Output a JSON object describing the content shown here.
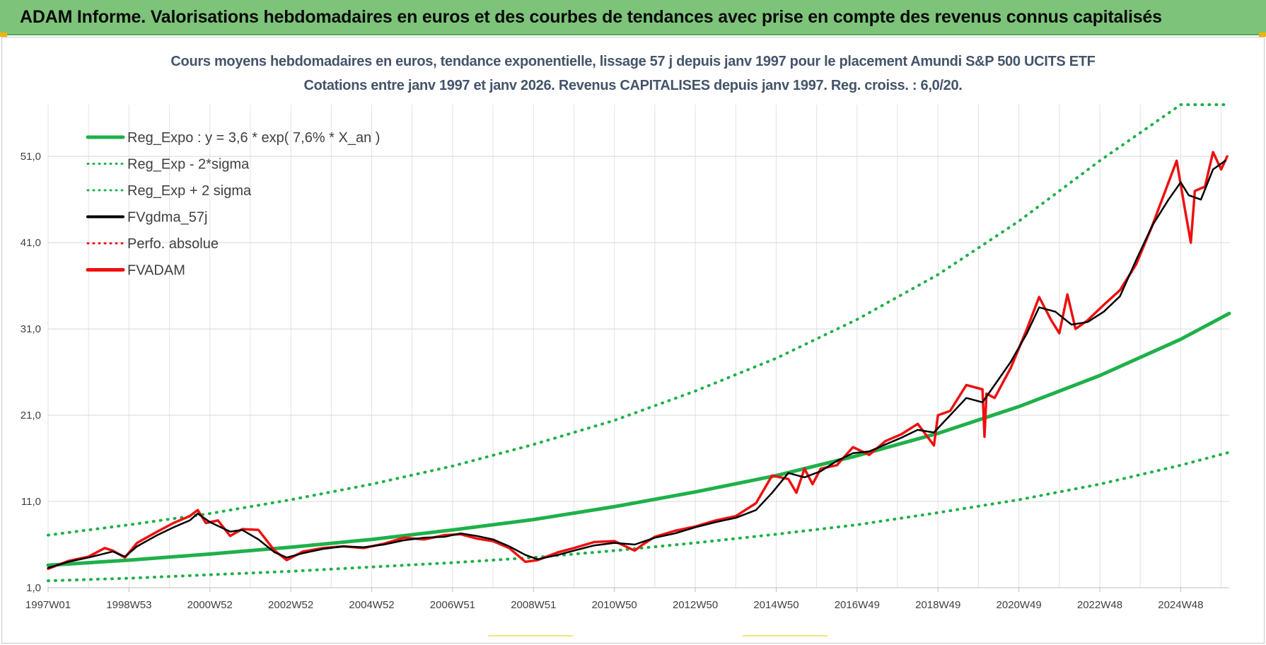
{
  "header": {
    "title": "ADAM Informe. Valorisations hebdomadaires en euros et des courbes de tendances avec prise en compte des revenus connus capitalisés"
  },
  "colors": {
    "banner": "#7dc47a",
    "reg_expo": "#1fb04a",
    "fvgdma": "#000000",
    "fvadam": "#ee1010",
    "perfo": "#ee1010"
  },
  "chart_data": {
    "type": "line",
    "title": "Cours moyens hebdomadaires en euros, tendance exponentielle, lissage 57 j depuis janv 1997 pour le placement Amundi S&P 500 UCITS ETF",
    "subtitle": "Cotations entre janv 1997 et janv 2026. Revenus CAPITALISES depuis janv 1997. Reg. croiss. : 6,0/20.",
    "xlabel": "",
    "ylabel": "",
    "x_range_years": [
      1997.0,
      2026.2
    ],
    "ylim": [
      1.0,
      57.0
    ],
    "y_ticks": [
      1.0,
      11.0,
      21.0,
      31.0,
      41.0,
      51.0
    ],
    "y_tick_labels": [
      "1,0",
      "11,0",
      "21,0",
      "31,0",
      "41,0",
      "51,0"
    ],
    "x_ticks": [
      {
        "label": "1997W01",
        "year": 1997.0
      },
      {
        "label": "1998W53",
        "year": 1999.0
      },
      {
        "label": "2000W52",
        "year": 2001.0
      },
      {
        "label": "2002W52",
        "year": 2003.0
      },
      {
        "label": "2004W52",
        "year": 2005.0
      },
      {
        "label": "2006W51",
        "year": 2007.0
      },
      {
        "label": "2008W51",
        "year": 2009.0
      },
      {
        "label": "2010W50",
        "year": 2011.0
      },
      {
        "label": "2012W50",
        "year": 2013.0
      },
      {
        "label": "2014W50",
        "year": 2015.0
      },
      {
        "label": "2016W49",
        "year": 2017.0
      },
      {
        "label": "2018W49",
        "year": 2019.0
      },
      {
        "label": "2020W49",
        "year": 2021.0
      },
      {
        "label": "2022W48",
        "year": 2023.0
      },
      {
        "label": "2024W48",
        "year": 2025.0
      }
    ],
    "grid": true,
    "legend_position": "top-left",
    "legend": [
      {
        "key": "reg_expo",
        "label": "Reg_Expo : y = 3,6 * exp( 7,6% *  X_an )",
        "style": "solid-thick",
        "color": "#1fb04a"
      },
      {
        "key": "reg_minus",
        "label": "Reg_Exp - 2*sigma",
        "style": "dotted",
        "color": "#1fb04a"
      },
      {
        "key": "reg_plus",
        "label": "Reg_Exp + 2 sigma",
        "style": "dotted",
        "color": "#1fb04a"
      },
      {
        "key": "fvgdma",
        "label": "FVgdma_57j",
        "style": "solid",
        "color": "#000000"
      },
      {
        "key": "perfo",
        "label": "Perfo. absolue",
        "style": "dotted",
        "color": "#ee1010"
      },
      {
        "key": "fvadam",
        "label": "FVADAM",
        "style": "solid-thick",
        "color": "#ee1010"
      }
    ],
    "series": [
      {
        "name": "Reg_Expo",
        "x": [
          1997.0,
          1999.0,
          2001.0,
          2003.0,
          2005.0,
          2007.0,
          2009.0,
          2011.0,
          2013.0,
          2015.0,
          2017.0,
          2019.0,
          2021.0,
          2023.0,
          2025.0,
          2026.2
        ],
        "values": [
          3.6,
          4.2,
          4.9,
          5.7,
          6.6,
          7.7,
          8.9,
          10.4,
          12.1,
          14.0,
          16.3,
          18.9,
          22.0,
          25.6,
          29.8,
          32.8
        ]
      },
      {
        "name": "Reg_Exp - 2*sigma",
        "x": [
          1997.0,
          1999.0,
          2001.0,
          2003.0,
          2005.0,
          2007.0,
          2009.0,
          2011.0,
          2013.0,
          2015.0,
          2017.0,
          2019.0,
          2021.0,
          2023.0,
          2025.0,
          2026.2
        ],
        "values": [
          1.8,
          2.1,
          2.5,
          2.9,
          3.4,
          3.9,
          4.5,
          5.3,
          6.2,
          7.2,
          8.3,
          9.7,
          11.2,
          13.0,
          15.2,
          16.7
        ]
      },
      {
        "name": "Reg_Exp + 2 sigma",
        "x": [
          1997.0,
          1999.0,
          2001.0,
          2003.0,
          2005.0,
          2007.0,
          2009.0,
          2011.0,
          2013.0,
          2015.0,
          2017.0,
          2019.0,
          2021.0,
          2023.0,
          2025.0,
          2026.2
        ],
        "values": [
          7.1,
          8.3,
          9.6,
          11.2,
          13.0,
          15.1,
          17.6,
          20.4,
          23.8,
          27.6,
          32.1,
          37.3,
          43.5,
          50.5,
          57.0,
          57.0
        ]
      },
      {
        "name": "FVgdma_57j",
        "x": [
          1997.0,
          1997.5,
          1998.0,
          1998.6,
          1998.9,
          1999.2,
          1999.7,
          2000.1,
          2000.5,
          2000.7,
          2001.0,
          2001.5,
          2001.8,
          2002.2,
          2002.6,
          2002.9,
          2003.3,
          2003.8,
          2004.3,
          2004.8,
          2005.3,
          2005.8,
          2006.3,
          2006.8,
          2007.2,
          2007.6,
          2008.0,
          2008.4,
          2008.8,
          2009.1,
          2009.6,
          2010.0,
          2010.5,
          2011.0,
          2011.5,
          2012.0,
          2012.5,
          2013.0,
          2013.5,
          2014.0,
          2014.5,
          2014.9,
          2015.3,
          2015.7,
          2016.1,
          2016.5,
          2016.9,
          2017.3,
          2017.7,
          2018.1,
          2018.5,
          2018.9,
          2019.3,
          2019.7,
          2020.1,
          2020.4,
          2020.8,
          2021.2,
          2021.5,
          2021.9,
          2022.3,
          2022.7,
          2023.1,
          2023.5,
          2023.9,
          2024.3,
          2024.7,
          2025.0,
          2025.2,
          2025.5,
          2025.8,
          2026.1
        ],
        "values": [
          3.3,
          4.0,
          4.5,
          5.2,
          4.6,
          5.8,
          7.1,
          8.0,
          8.8,
          9.6,
          8.6,
          7.5,
          7.7,
          6.6,
          5.1,
          4.5,
          5.0,
          5.5,
          5.8,
          5.7,
          6.0,
          6.5,
          6.8,
          6.9,
          7.3,
          7.0,
          6.6,
          5.8,
          4.8,
          4.3,
          4.8,
          5.3,
          5.9,
          6.2,
          6.0,
          6.8,
          7.3,
          8.0,
          8.6,
          9.1,
          10.0,
          12.0,
          14.3,
          13.8,
          14.5,
          15.7,
          16.6,
          16.8,
          17.6,
          18.4,
          19.3,
          19.0,
          21.0,
          23.0,
          22.5,
          24.5,
          27.2,
          30.5,
          33.5,
          33.0,
          31.5,
          31.8,
          33.0,
          34.8,
          39.0,
          43.0,
          46.0,
          48.0,
          46.5,
          46.0,
          49.5,
          50.5
        ]
      },
      {
        "name": "FVADAM",
        "x": [
          1997.0,
          1997.5,
          1998.0,
          1998.4,
          1998.6,
          1998.9,
          1999.2,
          1999.7,
          2000.1,
          2000.5,
          2000.7,
          2000.9,
          2001.2,
          2001.5,
          2001.8,
          2002.2,
          2002.6,
          2002.9,
          2003.3,
          2003.8,
          2004.3,
          2004.8,
          2005.3,
          2005.8,
          2006.3,
          2006.8,
          2007.2,
          2007.6,
          2008.0,
          2008.4,
          2008.8,
          2009.1,
          2009.6,
          2010.0,
          2010.5,
          2011.0,
          2011.5,
          2011.7,
          2012.0,
          2012.5,
          2013.0,
          2013.5,
          2014.0,
          2014.5,
          2014.9,
          2015.3,
          2015.5,
          2015.7,
          2015.9,
          2016.1,
          2016.5,
          2016.9,
          2017.3,
          2017.7,
          2018.1,
          2018.5,
          2018.9,
          2019.0,
          2019.3,
          2019.7,
          2020.1,
          2020.15,
          2020.2,
          2020.4,
          2020.8,
          2021.2,
          2021.5,
          2021.8,
          2022.0,
          2022.2,
          2022.4,
          2022.7,
          2023.1,
          2023.5,
          2023.9,
          2024.3,
          2024.7,
          2024.9,
          2025.1,
          2025.25,
          2025.35,
          2025.6,
          2025.8,
          2026.0,
          2026.15
        ],
        "values": [
          3.2,
          4.1,
          4.6,
          5.6,
          5.3,
          4.5,
          6.2,
          7.5,
          8.5,
          9.3,
          10.0,
          8.5,
          8.8,
          7.0,
          7.8,
          7.7,
          5.3,
          4.2,
          5.2,
          5.6,
          5.8,
          5.6,
          6.1,
          6.8,
          6.6,
          7.1,
          7.2,
          6.7,
          6.4,
          5.6,
          4.0,
          4.2,
          5.1,
          5.6,
          6.3,
          6.4,
          5.3,
          6.0,
          6.9,
          7.6,
          8.1,
          8.8,
          9.3,
          10.8,
          14.0,
          13.6,
          12.0,
          14.8,
          13.0,
          14.8,
          15.2,
          17.3,
          16.4,
          18.0,
          18.8,
          20.0,
          17.5,
          21.0,
          21.5,
          24.5,
          24.0,
          18.5,
          23.5,
          23.0,
          26.5,
          31.0,
          34.7,
          32.0,
          30.5,
          35.0,
          31.0,
          32.0,
          33.8,
          35.5,
          38.5,
          43.0,
          48.0,
          50.5,
          45.0,
          41.0,
          47.0,
          47.5,
          51.5,
          49.5,
          51.0
        ]
      }
    ]
  }
}
